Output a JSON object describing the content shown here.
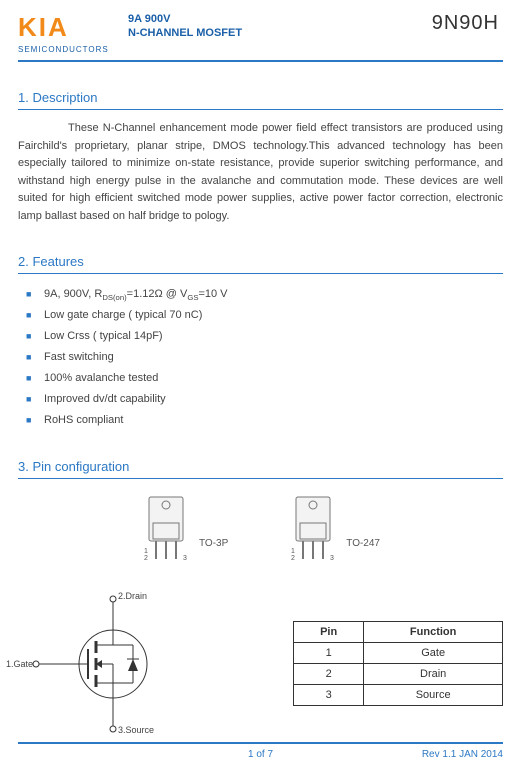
{
  "colors": {
    "brand_orange": "#f28a1a",
    "brand_blue": "#1a5fa8",
    "section_blue": "#2b78c4",
    "bullet_blue": "#2b78c4",
    "rule_blue": "#2b78c4",
    "text_body": "#444444"
  },
  "header": {
    "logo": "KIA",
    "logo_sub": "SEMICONDUCTORS",
    "title_line1": "9A 900V",
    "title_line2": "N-CHANNEL MOSFET",
    "part_number": "9N90H"
  },
  "sections": {
    "s1_title": "1. Description",
    "s1_body": "These N-Channel enhancement mode power field effect transistors are produced using Fairchild's proprietary, planar stripe, DMOS technology.This advanced technology has been especially tailored to minimize on-state resistance, provide superior switching performance, and withstand high energy pulse in the avalanche and commutation mode. These devices are well suited for high efficient switched mode power supplies, active power factor correction, electronic lamp ballast based on half bridge to pology.",
    "s2_title": "2. Features",
    "features": [
      "9A, 900V, R<sub>DS(on)</sub>=1.12Ω @ V<sub>GS</sub>=10 V",
      "Low gate charge ( typical 70 nC)",
      "Low Crss ( typical 14pF)",
      "Fast switching",
      "100% avalanche tested",
      "Improved dv/dt capability",
      "RoHS compliant"
    ],
    "s3_title": "3. Pin configuration",
    "packages": [
      {
        "label": "TO-3P"
      },
      {
        "label": "TO-247"
      }
    ],
    "schematic_labels": {
      "gate": "1.Gate",
      "drain": "2.Drain",
      "source": "3.Source"
    },
    "pin_table": {
      "headers": [
        "Pin",
        "Function"
      ],
      "rows": [
        [
          "1",
          "Gate"
        ],
        [
          "2",
          "Drain"
        ],
        [
          "3",
          "Source"
        ]
      ]
    }
  },
  "footer": {
    "page": "1 of 7",
    "rev": "Rev 1.1 JAN 2014"
  }
}
